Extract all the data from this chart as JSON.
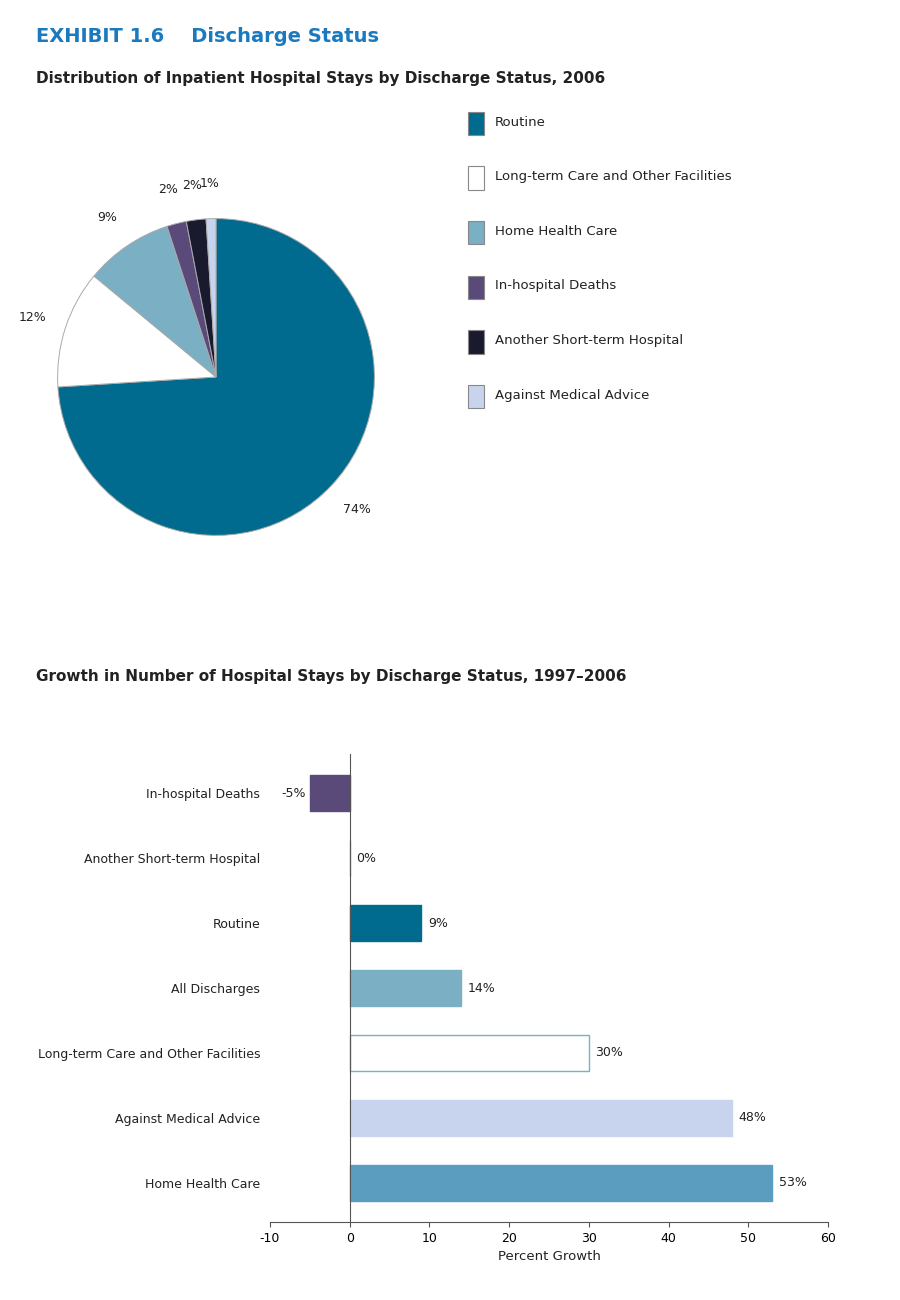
{
  "exhibit_title": "EXHIBIT 1.6    Discharge Status",
  "exhibit_title_color": "#1a7abf",
  "pie_title": "Distribution of Inpatient Hospital Stays by Discharge Status, 2006",
  "bar_title": "Growth in Number of Hospital Stays by Discharge Status, 1997–2006",
  "pie_labels": [
    "Routine",
    "Long-term Care and Other Facilities",
    "Home Health Care",
    "In-hospital Deaths",
    "Another Short-term Hospital",
    "Against Medical Advice"
  ],
  "pie_sizes": [
    74,
    12,
    9,
    2,
    2,
    1
  ],
  "pie_colors": [
    "#006b8f",
    "#ffffff",
    "#7aafc4",
    "#5a4a7a",
    "#1a1a2e",
    "#c8d4ee"
  ],
  "pie_label_pcts": [
    "74%",
    "12%",
    "9%",
    "2%",
    "2%",
    "1%"
  ],
  "bar_categories": [
    "In-hospital Deaths",
    "Another Short-term Hospital",
    "Routine",
    "All Discharges",
    "Long-term Care and Other Facilities",
    "Against Medical Advice",
    "Home Health Care"
  ],
  "bar_values": [
    -5,
    0,
    9,
    14,
    30,
    48,
    53
  ],
  "bar_colors": [
    "#5a4a7a",
    "#ffffff",
    "#006b8f",
    "#7aafc4",
    "#ffffff",
    "#c8d4ee",
    "#5b9dbf"
  ],
  "bar_edge_colors": [
    "#5a4a7a",
    "#7aafc4",
    "#006b8f",
    "#7aafc4",
    "#7aafc4",
    "#c8d4ee",
    "#5b9dbf"
  ],
  "bar_pct_labels": [
    "-5%",
    "0%",
    "9%",
    "14%",
    "30%",
    "48%",
    "53%"
  ],
  "bar_xlabel": "Percent Growth",
  "bar_xlim": [
    -10,
    60
  ],
  "bar_xticks": [
    -10,
    0,
    10,
    20,
    30,
    40,
    50,
    60
  ],
  "background_color": "#ffffff",
  "pie_title_fontsize": 11,
  "bar_title_fontsize": 11,
  "exhibit_fontsize": 14
}
